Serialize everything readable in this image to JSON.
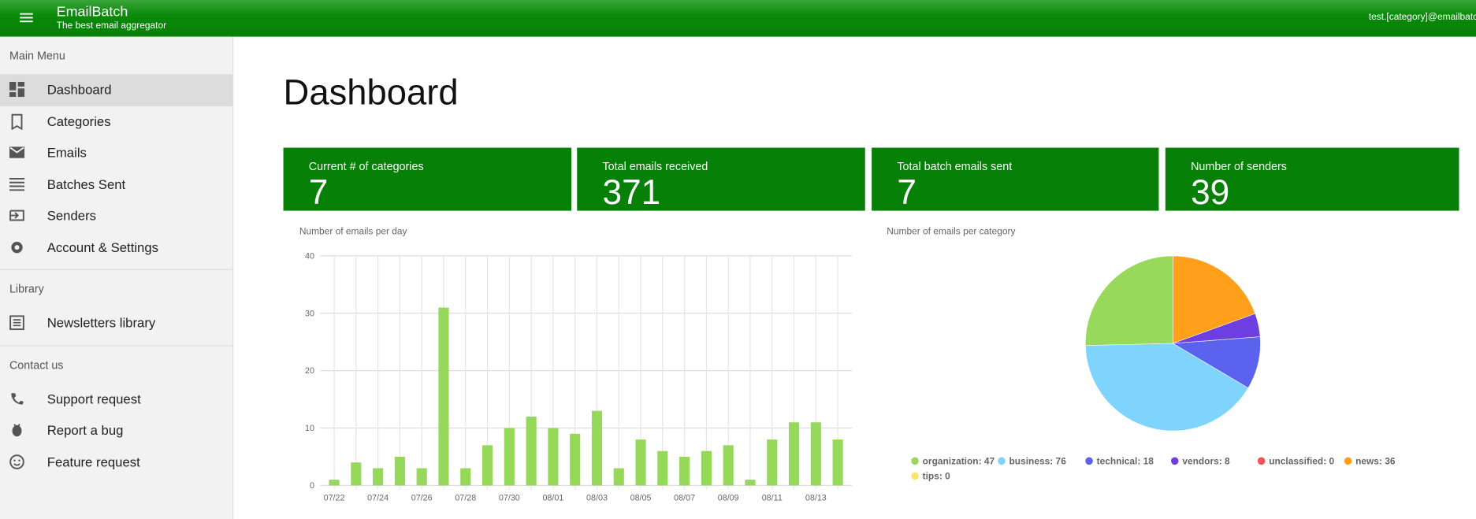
{
  "header": {
    "title": "EmailBatch",
    "subtitle": "The best email aggregator",
    "user": "test.[category]@emailbatc"
  },
  "sidebar": {
    "sections": [
      {
        "title": "Main Menu",
        "items": [
          "Dashboard",
          "Categories",
          "Emails",
          "Batches Sent",
          "Senders",
          "Account & Settings"
        ]
      },
      {
        "title": "Library",
        "items": [
          "Newsletters library"
        ]
      },
      {
        "title": "Contact us",
        "items": [
          "Support request",
          "Report a bug",
          "Feature request"
        ]
      }
    ]
  },
  "page_title": "Dashboard",
  "cards": [
    {
      "label": "Current # of categories",
      "value": "7"
    },
    {
      "label": "Total emails received",
      "value": "371"
    },
    {
      "label": "Total batch emails sent",
      "value": "7"
    },
    {
      "label": "Number of senders",
      "value": "39"
    }
  ],
  "chart_data": [
    {
      "type": "bar",
      "title": "Number of emails per day",
      "color": "#96d95a",
      "grid": true,
      "categories": [
        "07/22",
        null,
        "07/24",
        null,
        "07/26",
        null,
        "07/28",
        null,
        "07/30",
        null,
        "08/01",
        null,
        "08/03",
        null,
        "08/05",
        null,
        "08/07",
        null,
        "08/09",
        null,
        "08/11",
        null,
        "08/13",
        null
      ],
      "values": [
        1,
        4,
        3,
        5,
        3,
        31,
        3,
        7,
        10,
        12,
        10,
        9,
        13,
        3,
        8,
        6,
        5,
        6,
        7,
        1,
        8,
        11,
        11,
        8
      ],
      "ylim": [
        0,
        40
      ],
      "yticks": [
        0,
        10,
        20,
        30,
        40
      ]
    },
    {
      "type": "pie",
      "title": "Number of emails per category",
      "value_labels": [
        "organization: 47",
        "business: 76",
        "technical: 18",
        "vendors: 8",
        "unclassified: 0",
        "news: 36",
        "tips: 0"
      ],
      "values": [
        47,
        76,
        18,
        8,
        0,
        36,
        0
      ],
      "colors": [
        "#98d95b",
        "#7fd4fd",
        "#5b63ee",
        "#6e3fe0",
        "#f05454",
        "#ff9f1a",
        "#ffe36e"
      ]
    }
  ]
}
